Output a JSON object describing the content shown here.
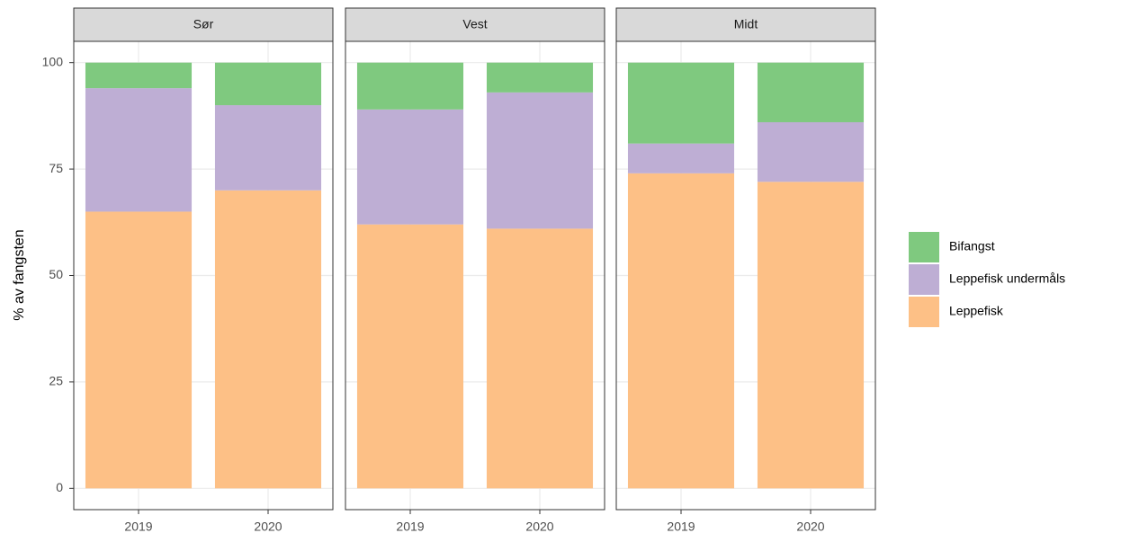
{
  "chart_data": [
    {
      "type": "bar",
      "stacked": true,
      "title": "Sør",
      "ylabel": "% av fangsten",
      "legend": "right",
      "categories": [
        "2019",
        "2020"
      ],
      "series": [
        {
          "name": "Leppefisk",
          "color": "#fdc086",
          "values": [
            65,
            70
          ]
        },
        {
          "name": "Leppefisk undermåls",
          "color": "#beaed4",
          "values": [
            29,
            20
          ]
        },
        {
          "name": "Bifangst",
          "color": "#7fc97f",
          "values": [
            6,
            10
          ]
        }
      ],
      "ylim": [
        -5,
        105
      ],
      "yticks": [
        0,
        25,
        50,
        75,
        100
      ],
      "grid": true
    },
    {
      "type": "bar",
      "stacked": true,
      "title": "Vest",
      "categories": [
        "2019",
        "2020"
      ],
      "series": [
        {
          "name": "Leppefisk",
          "color": "#fdc086",
          "values": [
            62,
            61
          ]
        },
        {
          "name": "Leppefisk undermåls",
          "color": "#beaed4",
          "values": [
            27,
            32
          ]
        },
        {
          "name": "Bifangst",
          "color": "#7fc97f",
          "values": [
            11,
            7
          ]
        }
      ],
      "ylim": [
        -5,
        105
      ],
      "yticks": [
        0,
        25,
        50,
        75,
        100
      ],
      "grid": true
    },
    {
      "type": "bar",
      "stacked": true,
      "title": "Midt",
      "categories": [
        "2019",
        "2020"
      ],
      "series": [
        {
          "name": "Leppefisk",
          "color": "#fdc086",
          "values": [
            74,
            72
          ]
        },
        {
          "name": "Leppefisk undermåls",
          "color": "#beaed4",
          "values": [
            7,
            14
          ]
        },
        {
          "name": "Bifangst",
          "color": "#7fc97f",
          "values": [
            19,
            14
          ]
        }
      ],
      "ylim": [
        -5,
        105
      ],
      "yticks": [
        0,
        25,
        50,
        75,
        100
      ],
      "grid": true
    }
  ]
}
